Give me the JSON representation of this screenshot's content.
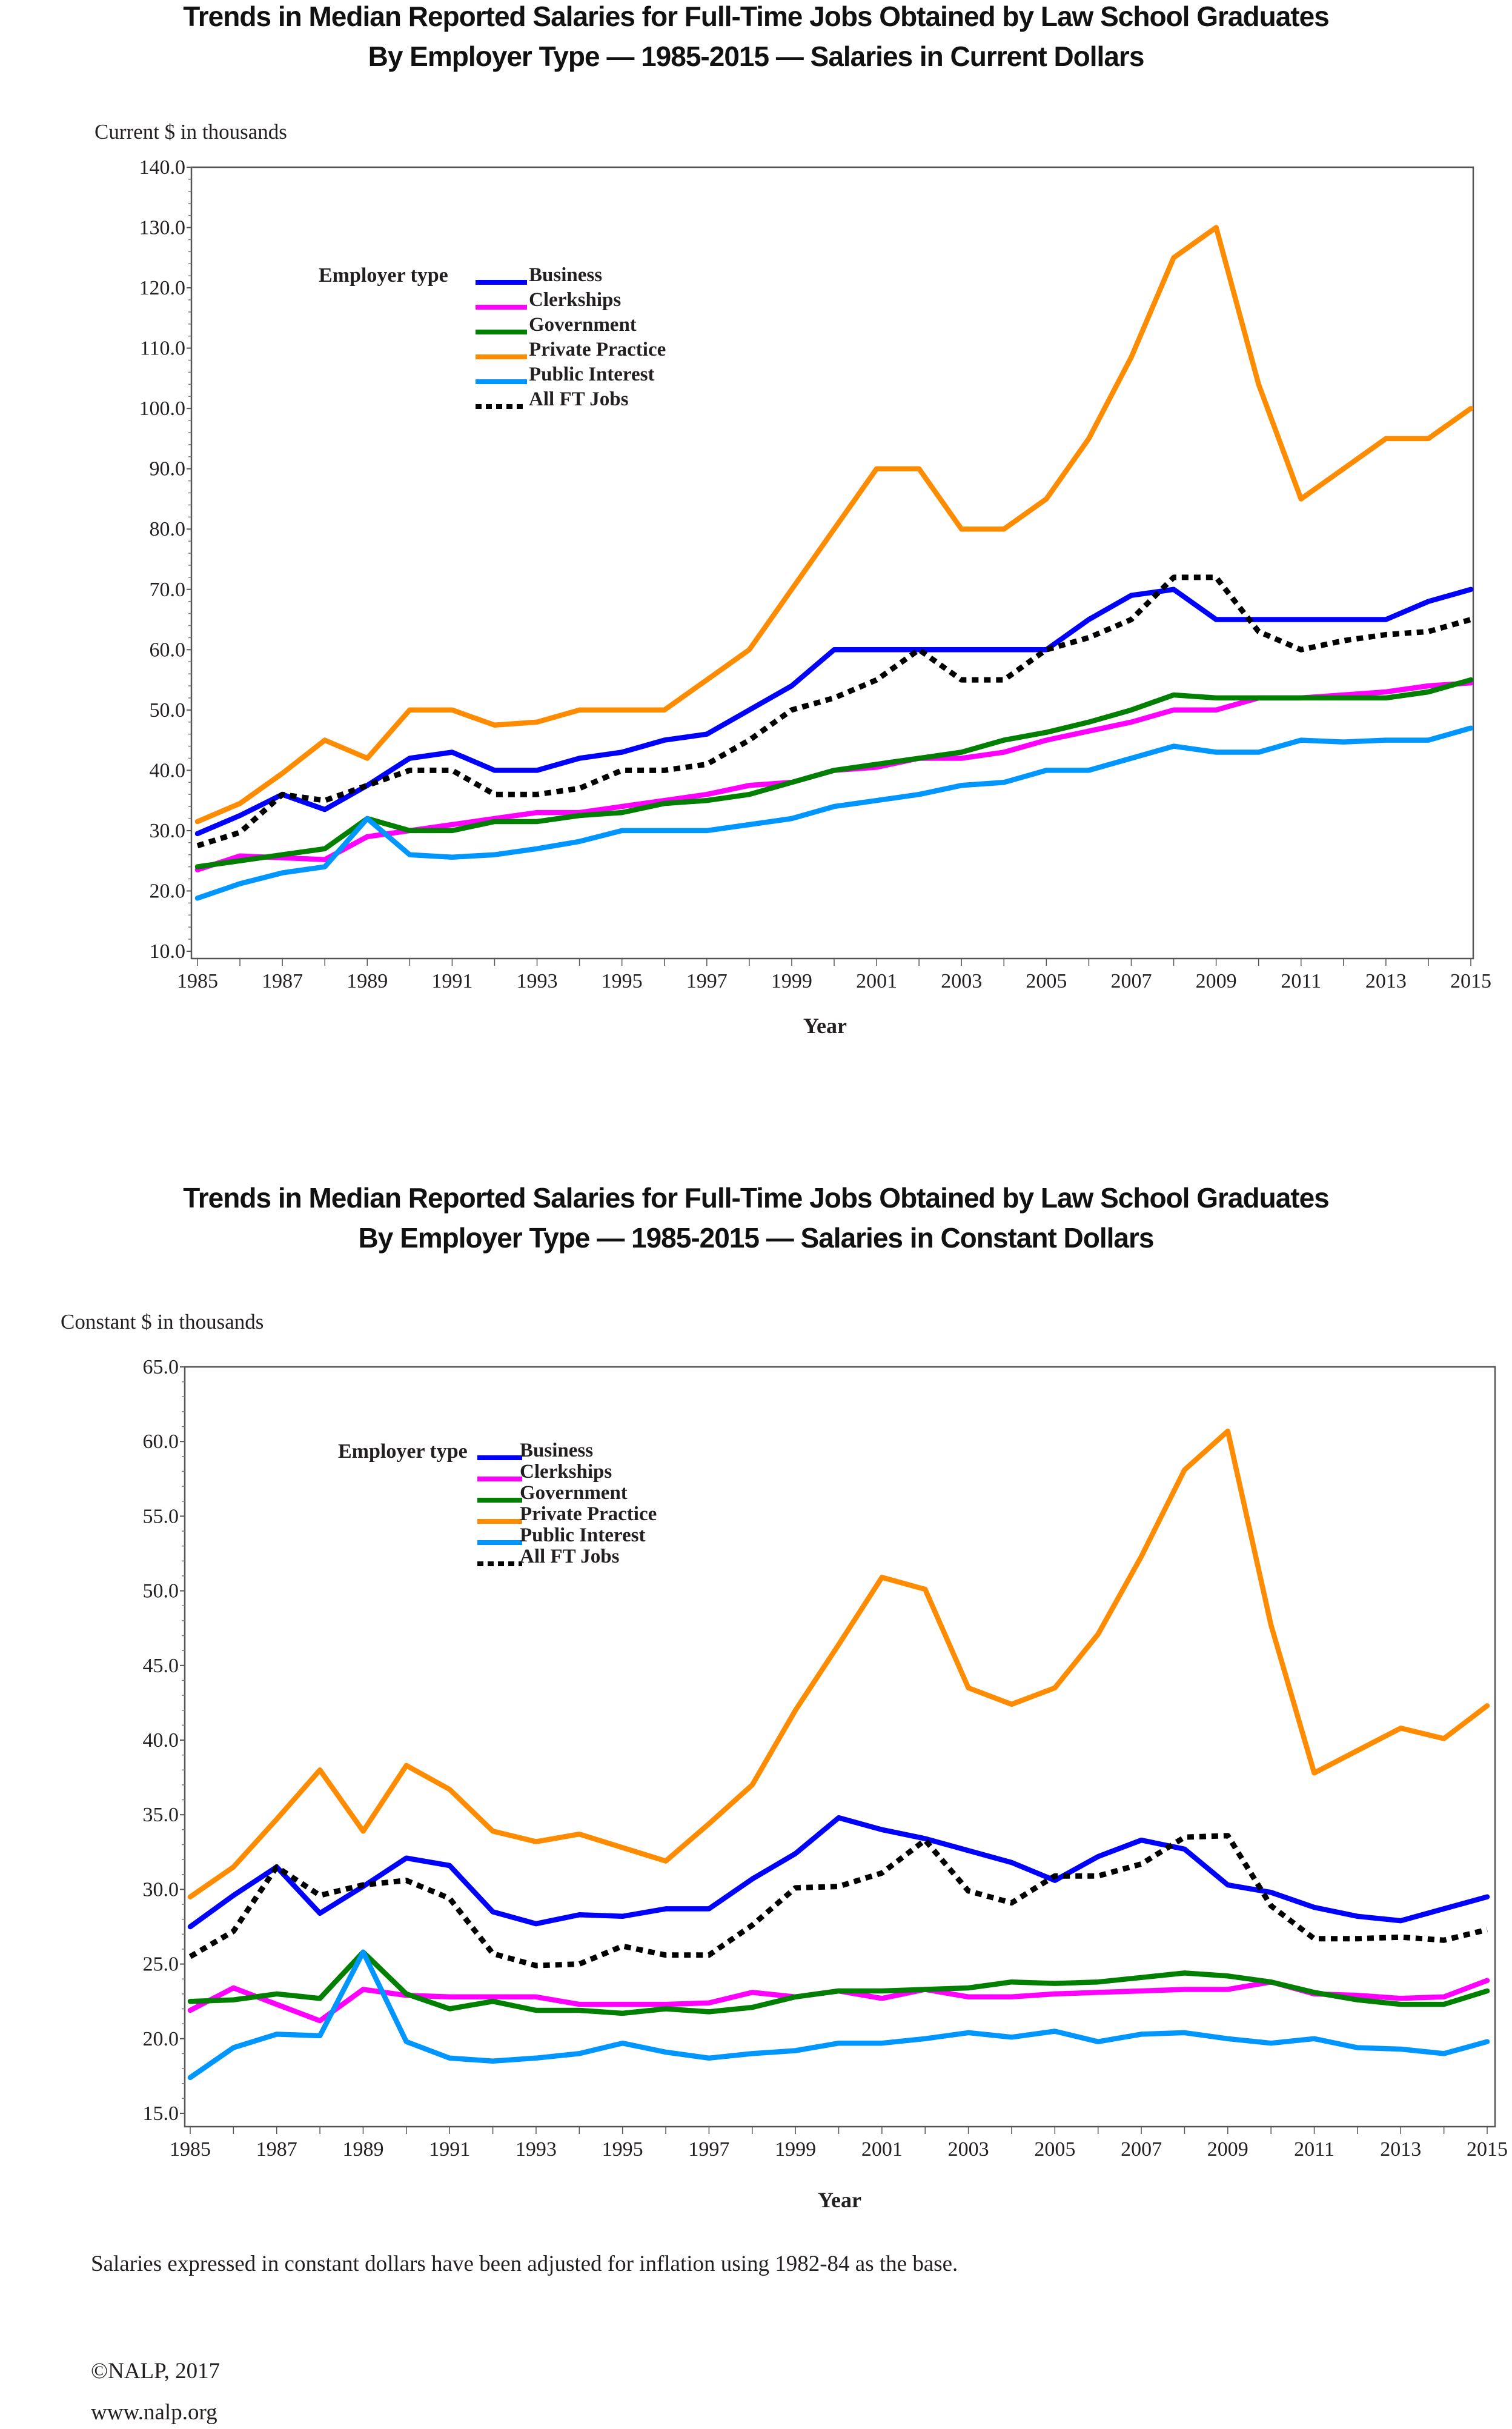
{
  "footnote": "Salaries expressed in constant dollars have been adjusted for inflation using 1982-84 as the base.",
  "copyright": "©NALP, 2017",
  "website": "www.nalp.org",
  "series_styles": [
    {
      "name": "Business",
      "color": "#0000ff",
      "dashed": false
    },
    {
      "name": "Clerkships",
      "color": "#ff00ff",
      "dashed": false
    },
    {
      "name": "Government",
      "color": "#007f00",
      "dashed": false
    },
    {
      "name": "Private Practice",
      "color": "#ff8c00",
      "dashed": false
    },
    {
      "name": "Public Interest",
      "color": "#0096ff",
      "dashed": false
    },
    {
      "name": "All FT Jobs",
      "color": "#000000",
      "dashed": true
    }
  ],
  "chart_data": [
    {
      "type": "line",
      "title_line1": "Trends in Median Reported Salaries for Full-Time Jobs Obtained by Law School Graduates",
      "title_line2": "By Employer Type — 1985-2015 — Salaries in Current Dollars",
      "ylabel": "Current $ in thousands",
      "xlabel": "Year",
      "legend_title": "Employer type",
      "legend_position": "top-left",
      "grid": false,
      "xlim": [
        1985,
        2015
      ],
      "ylim": [
        10,
        140
      ],
      "yticks": [
        "10.0",
        "20.0",
        "30.0",
        "40.0",
        "50.0",
        "60.0",
        "70.0",
        "80.0",
        "90.0",
        "100.0",
        "110.0",
        "120.0",
        "130.0",
        "140.0"
      ],
      "xticks": [
        "1985",
        "1987",
        "1989",
        "1991",
        "1993",
        "1995",
        "1997",
        "1999",
        "2001",
        "2003",
        "2005",
        "2007",
        "2009",
        "2011",
        "2013",
        "2015"
      ],
      "x": [
        1985,
        1986,
        1987,
        1988,
        1989,
        1990,
        1991,
        1992,
        1993,
        1994,
        1995,
        1996,
        1997,
        1998,
        1999,
        2000,
        2001,
        2002,
        2003,
        2004,
        2005,
        2006,
        2007,
        2008,
        2009,
        2010,
        2011,
        2012,
        2013,
        2014,
        2015
      ],
      "series": [
        {
          "name": "Business",
          "values": [
            29.5,
            32.5,
            36,
            33.5,
            37.5,
            42,
            43,
            40,
            40,
            42,
            43,
            45,
            46,
            50,
            54,
            60,
            60,
            60,
            60,
            60,
            60,
            65,
            69,
            70,
            65,
            65,
            65,
            65,
            65,
            68,
            70
          ]
        },
        {
          "name": "Clerkships",
          "values": [
            23.5,
            25.8,
            25.5,
            25.2,
            29,
            30,
            31,
            32,
            33,
            33,
            34,
            35,
            36,
            37.5,
            38,
            40,
            40.5,
            42,
            42,
            43,
            45,
            46.5,
            48,
            50,
            50,
            52,
            52,
            52.5,
            53,
            54,
            54.5
          ]
        },
        {
          "name": "Government",
          "values": [
            24,
            25,
            26,
            27,
            32,
            30,
            30,
            31.5,
            31.5,
            32.5,
            33,
            34.5,
            35,
            36,
            38,
            40,
            41,
            42,
            43,
            45,
            46.3,
            48,
            50,
            52.5,
            52,
            52,
            52,
            52,
            52,
            53,
            55
          ]
        },
        {
          "name": "Private Practice",
          "values": [
            31.5,
            34.5,
            39.5,
            45,
            42,
            50,
            50,
            47.5,
            48,
            50,
            50,
            50,
            55,
            60,
            70,
            80,
            90,
            90,
            80,
            80,
            85,
            95,
            108.5,
            125,
            130,
            104,
            85,
            90,
            95,
            95,
            100
          ]
        },
        {
          "name": "Public Interest",
          "values": [
            18.8,
            21.2,
            23,
            24,
            32,
            26,
            25.6,
            26,
            27,
            28.2,
            30,
            30,
            30,
            31,
            32,
            34,
            35,
            36,
            37.5,
            38,
            40,
            40,
            42,
            44,
            43,
            43,
            45,
            44.7,
            45,
            45,
            47
          ]
        },
        {
          "name": "All FT Jobs",
          "values": [
            27.5,
            29.7,
            36,
            35,
            37.5,
            40,
            40,
            36,
            36,
            37,
            40,
            40,
            41,
            45,
            50,
            52,
            55,
            60,
            55,
            55,
            60,
            62,
            65,
            72,
            72,
            63,
            60,
            61.5,
            62.5,
            63,
            65
          ]
        }
      ]
    },
    {
      "type": "line",
      "title_line1": "Trends in Median Reported Salaries for Full-Time Jobs Obtained by Law School Graduates",
      "title_line2": "By Employer Type — 1985-2015 — Salaries in Constant Dollars",
      "ylabel": "Constant $ in thousands",
      "xlabel": "Year",
      "legend_title": "Employer type",
      "legend_position": "top-left",
      "grid": false,
      "xlim": [
        1985,
        2015
      ],
      "ylim": [
        15,
        65
      ],
      "yticks": [
        "15.0",
        "20.0",
        "25.0",
        "30.0",
        "35.0",
        "40.0",
        "45.0",
        "50.0",
        "55.0",
        "60.0",
        "65.0"
      ],
      "xticks": [
        "1985",
        "1987",
        "1989",
        "1991",
        "1993",
        "1995",
        "1997",
        "1999",
        "2001",
        "2003",
        "2005",
        "2007",
        "2009",
        "2011",
        "2013",
        "2015"
      ],
      "x": [
        1985,
        1986,
        1987,
        1988,
        1989,
        1990,
        1991,
        1992,
        1993,
        1994,
        1995,
        1996,
        1997,
        1998,
        1999,
        2000,
        2001,
        2002,
        2003,
        2004,
        2005,
        2006,
        2007,
        2008,
        2009,
        2010,
        2011,
        2012,
        2013,
        2014,
        2015
      ],
      "series": [
        {
          "name": "Business",
          "values": [
            27.5,
            29.6,
            31.5,
            28.4,
            30.2,
            32.1,
            31.6,
            28.5,
            27.7,
            28.3,
            28.2,
            28.7,
            28.7,
            30.7,
            32.4,
            34.8,
            34.0,
            33.4,
            32.6,
            31.8,
            30.6,
            32.2,
            33.3,
            32.7,
            30.3,
            29.8,
            28.8,
            28.2,
            27.9,
            28.7,
            29.5
          ]
        },
        {
          "name": "Clerkships",
          "values": [
            21.9,
            23.4,
            22.3,
            21.2,
            23.3,
            22.9,
            22.8,
            22.8,
            22.8,
            22.3,
            22.3,
            22.3,
            22.4,
            23.1,
            22.8,
            23.2,
            22.7,
            23.3,
            22.8,
            22.8,
            23.0,
            23.1,
            23.2,
            23.3,
            23.3,
            23.8,
            23.0,
            22.9,
            22.7,
            22.8,
            23.9
          ]
        },
        {
          "name": "Government",
          "values": [
            22.5,
            22.6,
            23.0,
            22.7,
            25.8,
            23.0,
            22.0,
            22.5,
            21.9,
            21.9,
            21.7,
            22.0,
            21.8,
            22.1,
            22.8,
            23.2,
            23.2,
            23.3,
            23.4,
            23.8,
            23.7,
            23.8,
            24.1,
            24.4,
            24.2,
            23.8,
            23.1,
            22.6,
            22.3,
            22.3,
            23.2
          ]
        },
        {
          "name": "Private Practice",
          "values": [
            29.5,
            31.5,
            34.7,
            38.0,
            33.9,
            38.3,
            36.7,
            33.9,
            33.2,
            33.7,
            32.8,
            31.9,
            34.4,
            37.0,
            42.0,
            46.4,
            50.9,
            50.1,
            43.5,
            42.4,
            43.5,
            47.1,
            52.3,
            58.1,
            60.7,
            47.7,
            37.8,
            39.3,
            40.8,
            40.1,
            42.3
          ]
        },
        {
          "name": "Public Interest",
          "values": [
            17.4,
            19.4,
            20.3,
            20.2,
            25.8,
            19.8,
            18.7,
            18.5,
            18.7,
            19.0,
            19.7,
            19.1,
            18.7,
            19.0,
            19.2,
            19.7,
            19.7,
            20.0,
            20.4,
            20.1,
            20.5,
            19.8,
            20.3,
            20.4,
            20.0,
            19.7,
            20.0,
            19.4,
            19.3,
            19.0,
            19.8
          ]
        },
        {
          "name": "All FT Jobs",
          "values": [
            25.5,
            27.2,
            31.5,
            29.6,
            30.3,
            30.6,
            29.4,
            25.7,
            24.9,
            25.0,
            26.2,
            25.6,
            25.6,
            27.6,
            30.1,
            30.2,
            31.1,
            33.3,
            29.9,
            29.1,
            30.9,
            30.9,
            31.7,
            33.5,
            33.6,
            28.9,
            26.7,
            26.7,
            26.8,
            26.6,
            27.3
          ]
        }
      ]
    }
  ]
}
